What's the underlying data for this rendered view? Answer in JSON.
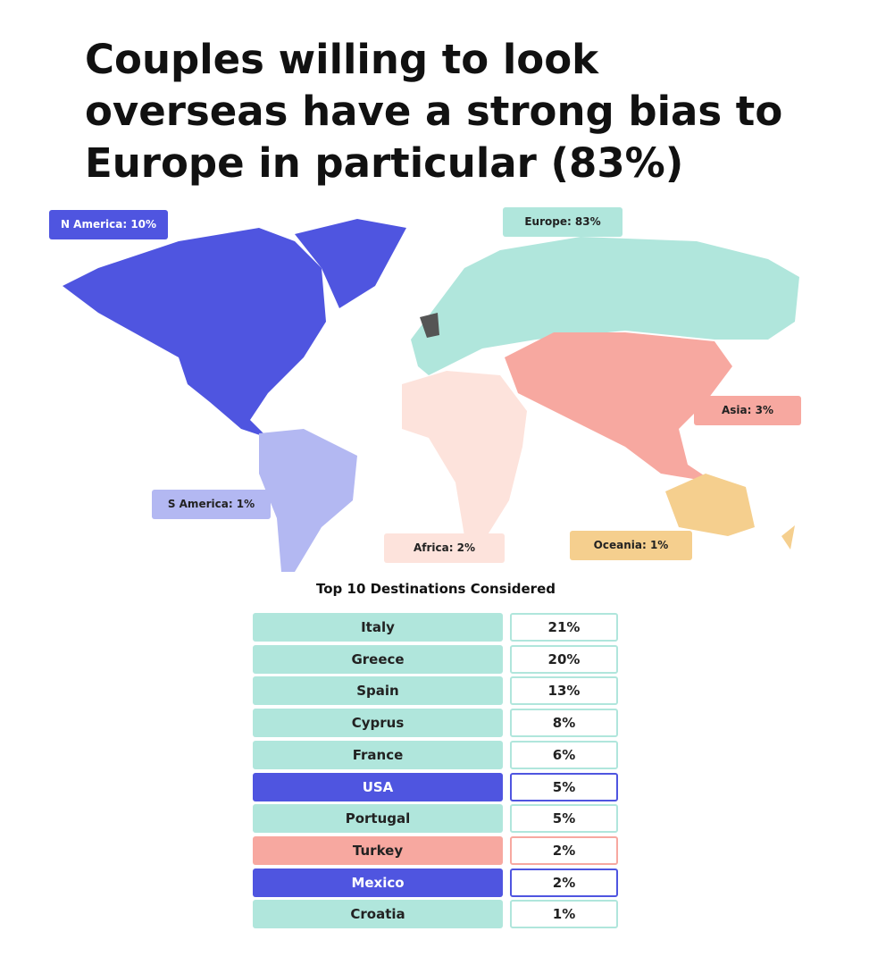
{
  "title_lines": [
    "Couples willing to look",
    "overseas have a strong bias to",
    "Europe in particular (83%)"
  ],
  "regions": [
    {
      "label": "N America: 10%",
      "color": "#4f55e0",
      "text_color": "#ffffff"
    },
    {
      "label": "Europe: 83%",
      "color": "#b0e6dc",
      "text_color": "#222222"
    },
    {
      "label": "Asia: 3%",
      "color": "#f7a8a0",
      "text_color": "#222222"
    },
    {
      "label": "S America: 1%",
      "color": "#b3b8f2",
      "text_color": "#222222"
    },
    {
      "label": "Africa: 2%",
      "color": "#fde3dc",
      "text_color": "#222222"
    },
    {
      "label": "Oceania: 1%",
      "color": "#f5cf8e",
      "text_color": "#222222"
    }
  ],
  "table": {
    "title": "Top 10 Destinations Considered",
    "rows": [
      {
        "name": "Italy",
        "value": "21%",
        "color": "#b0e6dc",
        "text_color": "#222222"
      },
      {
        "name": "Greece",
        "value": "20%",
        "color": "#b0e6dc",
        "text_color": "#222222"
      },
      {
        "name": "Spain",
        "value": "13%",
        "color": "#b0e6dc",
        "text_color": "#222222"
      },
      {
        "name": "Cyprus",
        "value": "8%",
        "color": "#b0e6dc",
        "text_color": "#222222"
      },
      {
        "name": "France",
        "value": "6%",
        "color": "#b0e6dc",
        "text_color": "#222222"
      },
      {
        "name": "USA",
        "value": "5%",
        "color": "#4f55e0",
        "text_color": "#ffffff"
      },
      {
        "name": "Portugal",
        "value": "5%",
        "color": "#b0e6dc",
        "text_color": "#222222"
      },
      {
        "name": "Turkey",
        "value": "2%",
        "color": "#f7a8a0",
        "text_color": "#222222"
      },
      {
        "name": "Mexico",
        "value": "2%",
        "color": "#4f55e0",
        "text_color": "#ffffff"
      },
      {
        "name": "Croatia",
        "value": "1%",
        "color": "#b0e6dc",
        "text_color": "#222222"
      }
    ]
  }
}
